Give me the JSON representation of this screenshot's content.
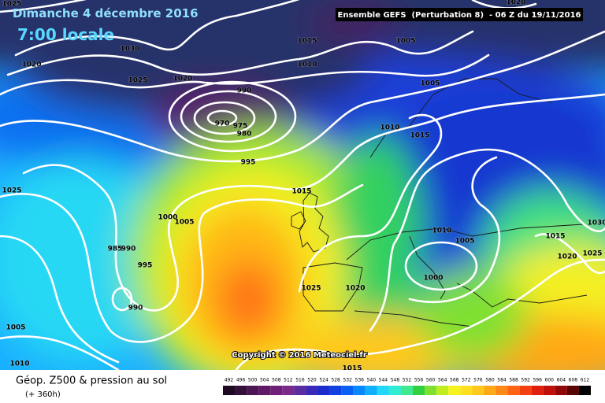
{
  "header": {
    "date": "Dimanche 4 décembre 2016",
    "time": "7:00 locale",
    "run": "Ensemble GEFS  (Perturbation 8)  - 06 Z du 19/11/2016"
  },
  "map": {
    "copyright": "Copyright © 2016 Meteociel.fr",
    "isobar_labels": [
      "1025",
      "1030",
      "1020",
      "1025",
      "1020",
      "1015",
      "1010",
      "1005",
      "1005",
      "990",
      "970",
      "975",
      "980",
      "995",
      "1010",
      "1015",
      "1015",
      "1025",
      "1000",
      "1005",
      "985",
      "990",
      "995",
      "990",
      "1005",
      "1010",
      "1010",
      "1005",
      "1000",
      "1025",
      "1020",
      "1015",
      "1020",
      "1030",
      "1025",
      "1015",
      "1020"
    ]
  },
  "footer": {
    "title": "Géop. Z500 & pression au sol",
    "lead": "(+ 360h)",
    "scale": {
      "values": [
        492,
        496,
        500,
        504,
        508,
        512,
        516,
        520,
        524,
        528,
        532,
        536,
        540,
        544,
        548,
        552,
        556,
        560,
        564,
        568,
        572,
        576,
        580,
        584,
        588,
        592,
        596,
        600,
        604,
        608,
        612
      ],
      "colors": [
        "#1e0a22",
        "#35103b",
        "#4c1554",
        "#5e1a66",
        "#6e2078",
        "#7a2a8a",
        "#5a2ea0",
        "#3a2ab8",
        "#1c2ccc",
        "#1040e0",
        "#0a60f4",
        "#0888ff",
        "#10b0ff",
        "#20d8f8",
        "#30ecd0",
        "#40e890",
        "#30d040",
        "#80e030",
        "#c0ec20",
        "#f4f41c",
        "#ffe020",
        "#ffc81c",
        "#ffa818",
        "#ff8818",
        "#ff6414",
        "#f44010",
        "#e0200c",
        "#c0100a",
        "#900808",
        "#580404",
        "#000000"
      ]
    }
  }
}
